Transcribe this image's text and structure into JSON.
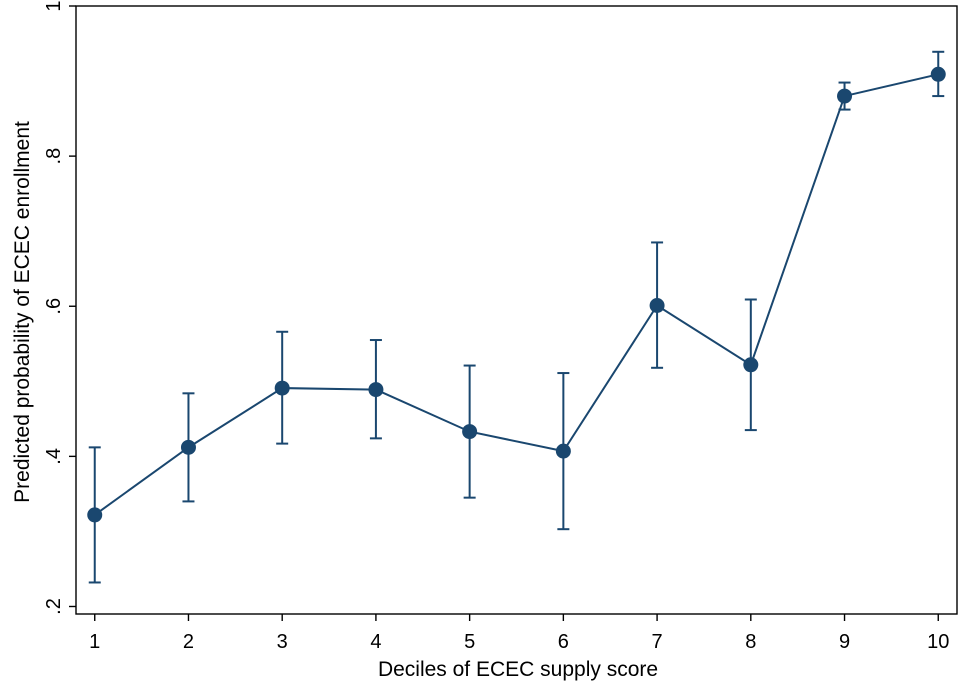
{
  "chart_data": {
    "type": "line",
    "title": "",
    "xlabel": "Deciles of ECEC supply score",
    "ylabel": "Predicted probability of ECEC enrollment",
    "x": [
      1,
      2,
      3,
      4,
      5,
      6,
      7,
      8,
      9,
      10
    ],
    "xticks": [
      1,
      2,
      3,
      4,
      5,
      6,
      7,
      8,
      9,
      10
    ],
    "xtick_labels": [
      "1",
      "2",
      "3",
      "4",
      "5",
      "6",
      "7",
      "8",
      "9",
      "10"
    ],
    "yticks": [
      0.2,
      0.4,
      0.6,
      0.8,
      1.0
    ],
    "ytick_labels": [
      ".2",
      ".4",
      ".6",
      ".8",
      "1"
    ],
    "xlim": [
      0.8,
      10.2
    ],
    "ylim": [
      0.19,
      1.0
    ],
    "grid": false,
    "legend": "none",
    "series": [
      {
        "values": [
          0.322,
          0.412,
          0.491,
          0.489,
          0.433,
          0.407,
          0.601,
          0.522,
          0.88,
          0.909
        ],
        "ci_lower": [
          0.232,
          0.34,
          0.417,
          0.424,
          0.345,
          0.303,
          0.518,
          0.435,
          0.862,
          0.88
        ],
        "ci_upper": [
          0.412,
          0.484,
          0.566,
          0.555,
          0.521,
          0.511,
          0.685,
          0.609,
          0.898,
          0.939
        ],
        "color": "#1a476f"
      }
    ]
  }
}
